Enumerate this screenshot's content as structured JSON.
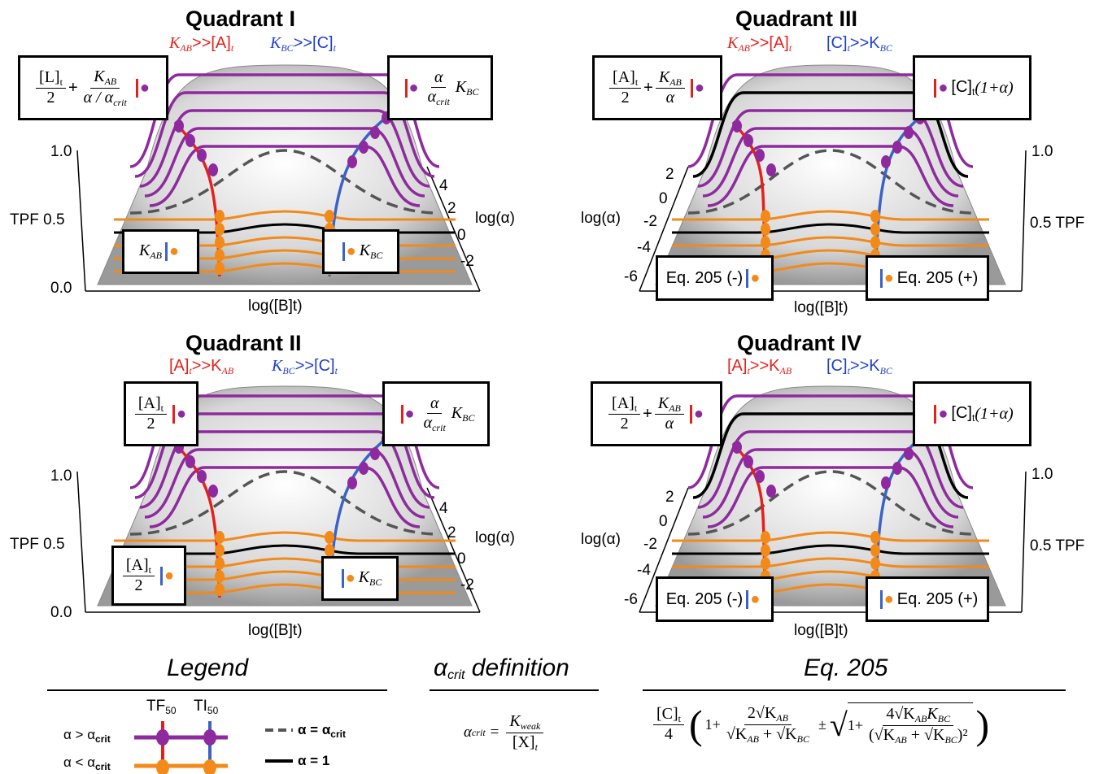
{
  "quadrants": [
    {
      "title": "Quadrant I",
      "cond_left": "K_AB>>[A]_t",
      "cond_left_main": "K",
      "cond_left_sub": "AB",
      "cond_left_rest": ">>[A]",
      "cond_left_sub2": "t",
      "cond_right_main": "K",
      "cond_right_sub": "BC",
      "cond_right_rest": ">>[C]",
      "cond_right_sub2": "t",
      "box_top_left": "[L]t/2 + KAB/(α/αcrit)",
      "box_top_right": "α/αcrit KBC",
      "box_bot_left": "KAB",
      "box_bot_right": "KBC",
      "y_ticks": [
        "1.0",
        "TPF 0.5",
        "0.0"
      ],
      "alpha_ticks": [
        "4",
        "2",
        "0",
        "-2"
      ],
      "alpha_label": "log(α)",
      "x_label": "log([B]t)"
    },
    {
      "title": "Quadrant III",
      "cond_left_main": "K",
      "cond_left_sub": "AB",
      "cond_left_rest": ">>[A]",
      "cond_left_sub2": "t",
      "cond_right_main": "[C]",
      "cond_right_sub": "t",
      "cond_right_rest": ">>K",
      "cond_right_sub2": "BC",
      "box_top_left": "[A]t/2 + KAB/α",
      "box_top_right": "[C]t (1+α)",
      "box_bot_left": "Eq. 205 (-)",
      "box_bot_right": "Eq. 205 (+)",
      "y_ticks": [
        "1.0",
        "0.5 TPF"
      ],
      "alpha_ticks": [
        "2",
        "0",
        "-2",
        "-4",
        "-6"
      ],
      "alpha_label": "log(α)",
      "x_label": "log([B]t)"
    },
    {
      "title": "Quadrant II",
      "cond_left_main": "[A]",
      "cond_left_sub": "t",
      "cond_left_rest": ">>K",
      "cond_left_sub2": "AB",
      "cond_right_main": "K",
      "cond_right_sub": "BC",
      "cond_right_rest": ">>[C]",
      "cond_right_sub2": "t",
      "box_top_left": "[A]t/2",
      "box_top_right": "α/αcrit KBC",
      "box_bot_left": "[A]t/2",
      "box_bot_right": "KBC",
      "y_ticks": [
        "1.0",
        "TPF 0.5",
        "0.0"
      ],
      "alpha_ticks": [
        "4",
        "2",
        "0",
        "-2"
      ],
      "alpha_label": "log(α)",
      "x_label": "log([B]t)"
    },
    {
      "title": "Quadrant IV",
      "cond_left_main": "[A]",
      "cond_left_sub": "t",
      "cond_left_rest": ">>K",
      "cond_left_sub2": "AB",
      "cond_right_main": "[C]",
      "cond_right_sub": "t",
      "cond_right_rest": ">>K",
      "cond_right_sub2": "BC",
      "box_top_left": "[A]t/2 + KAB/α",
      "box_top_right": "[C]t (1+α)",
      "box_bot_left": "Eq. 205 (-)",
      "box_bot_right": "Eq. 205 (+)",
      "y_ticks": [
        "1.0",
        "0.5 TPF"
      ],
      "alpha_ticks": [
        "2",
        "0",
        "-2",
        "-4",
        "-6"
      ],
      "alpha_label": "log(α)",
      "x_label": "log([B]t)"
    }
  ],
  "legend": {
    "title": "Legend",
    "tf50": "TF",
    "tf50_sub": "50",
    "ti50": "TI",
    "ti50_sub": "50",
    "alpha_gt": "α > α",
    "alpha_gt_sub": "crit",
    "alpha_lt": "α < α",
    "alpha_lt_sub": "crit",
    "dashed_label": "α = α",
    "dashed_sub": "crit",
    "solid_label": "α = 1"
  },
  "alpha_crit": {
    "title_main": "α",
    "title_sub": "crit",
    "title_rest": " definition",
    "lhs": "α",
    "lhs_sub": "crit",
    "num": "K",
    "num_sub": "weak",
    "den": "[X]",
    "den_sub": "t"
  },
  "eq205": {
    "title": "Eq. 205",
    "lead_num": "[C]",
    "lead_num_sub": "t",
    "lead_den": "4",
    "one": "1+",
    "two_sqrt": "2√K",
    "two_sub": "AB",
    "den_text": "√K",
    "den_sub1": "AB",
    "den_plus": " + √K",
    "den_sub2": "BC",
    "pm": "±",
    "four_sqrt": "4√K",
    "four_sub": "AB",
    "four_k2": "K",
    "four_sub2": "BC",
    "den2": "(√K",
    "den2_sub1": "AB",
    "den2_plus": " + √K",
    "den2_sub2": "BC",
    "den2_close": ")²"
  },
  "colors": {
    "purple": "#8e2a9e",
    "orange": "#f28a1a",
    "red": "#e3211c",
    "blue": "#3a62c8",
    "dashed": "#555555",
    "solid": "#000000"
  }
}
